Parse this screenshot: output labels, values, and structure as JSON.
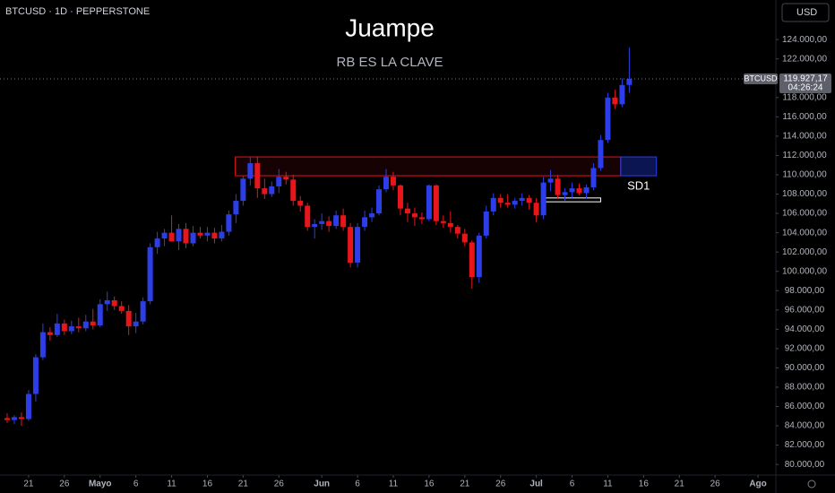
{
  "chart_data": {
    "type": "candlestick",
    "symbol": "BTCUSD · 1D · PEPPERSTONE",
    "currency": "USD",
    "title": "Juampe",
    "subtitle": "RB ES LA CLAVE",
    "up_color": "#2d3ee8",
    "down_color": "#e8151b",
    "x": [
      -3,
      -2,
      -1,
      0,
      1,
      2,
      3,
      4,
      5,
      6,
      7,
      8,
      9,
      10,
      11,
      12,
      13,
      14,
      15,
      16,
      17,
      18,
      19,
      20,
      21,
      22,
      23,
      24,
      25,
      26,
      27,
      28,
      29,
      30,
      31,
      32,
      33,
      34,
      35,
      36,
      37,
      38,
      39,
      40,
      41,
      42,
      43,
      44,
      45,
      46,
      47,
      48,
      49,
      50,
      51,
      52,
      53,
      54,
      55,
      56,
      57,
      58,
      59,
      60,
      61,
      62,
      63,
      64,
      65,
      66,
      67,
      68,
      69,
      70,
      71,
      72,
      73,
      74,
      75,
      76,
      77,
      78,
      79,
      80,
      81,
      82,
      83,
      84
    ],
    "open": [
      84800,
      84600,
      84900,
      84700,
      87300,
      91100,
      93700,
      93400,
      94600,
      93800,
      94300,
      94100,
      94800,
      94400,
      96600,
      97000,
      96400,
      95900,
      94300,
      94800,
      96900,
      102500,
      103400,
      104000,
      103100,
      104400,
      102900,
      104000,
      103700,
      104000,
      103400,
      104100,
      105900,
      107300,
      109600,
      111200,
      108600,
      108000,
      108800,
      109800,
      109500,
      107300,
      106800,
      104600,
      104900,
      105200,
      104700,
      105800,
      104600,
      100900,
      104600,
      105600,
      106000,
      108500,
      109800,
      108900,
      106500,
      106000,
      105600,
      105400,
      108900,
      105200,
      105000,
      104600,
      103900,
      103000,
      99400,
      103700,
      106200,
      107600,
      107100,
      106900,
      107300,
      107600,
      107100,
      105800,
      109200,
      109600,
      107900,
      108200,
      108600,
      108100,
      108700,
      110700,
      113600,
      118000,
      117300,
      119300
    ],
    "high": [
      85300,
      85100,
      85400,
      87700,
      91400,
      94600,
      94200,
      95600,
      95000,
      94900,
      95200,
      95500,
      96100,
      97100,
      97900,
      97400,
      96900,
      96500,
      95700,
      97300,
      102900,
      104100,
      104400,
      105800,
      104900,
      105000,
      104700,
      104600,
      104600,
      104500,
      104800,
      106300,
      108000,
      109900,
      111900,
      111900,
      109600,
      109300,
      110600,
      110300,
      110000,
      107800,
      107100,
      105400,
      106000,
      105700,
      106300,
      106500,
      105000,
      105000,
      106300,
      106600,
      108900,
      110600,
      110300,
      109000,
      107100,
      106600,
      106100,
      109000,
      109000,
      105800,
      106200,
      104800,
      104400,
      103200,
      104000,
      106800,
      108100,
      108000,
      108000,
      107600,
      108100,
      107900,
      107600,
      109800,
      110500,
      110000,
      108600,
      109200,
      109100,
      109000,
      111200,
      114100,
      118500,
      118800,
      120000,
      123200
    ],
    "low": [
      84300,
      84200,
      84000,
      84500,
      86500,
      90800,
      92800,
      93200,
      93400,
      93500,
      93700,
      93800,
      94000,
      94200,
      95900,
      96000,
      95600,
      93400,
      93600,
      94500,
      96600,
      101800,
      102600,
      103300,
      102200,
      102400,
      102600,
      103400,
      103100,
      102900,
      103100,
      103700,
      105000,
      106800,
      108900,
      107600,
      107500,
      107700,
      108100,
      109000,
      106800,
      106200,
      104200,
      103400,
      104300,
      104100,
      104400,
      104200,
      100400,
      100400,
      104200,
      105100,
      105800,
      108200,
      108400,
      105800,
      105100,
      104700,
      104900,
      105200,
      104800,
      104500,
      104000,
      103400,
      102600,
      98200,
      98800,
      103400,
      105800,
      106600,
      106600,
      106500,
      106800,
      106400,
      105100,
      105400,
      108300,
      107500,
      107300,
      107600,
      107900,
      107500,
      108400,
      110400,
      113300,
      116800,
      117000,
      118500
    ],
    "close": [
      84600,
      84900,
      84700,
      87300,
      91100,
      93700,
      93400,
      94600,
      93800,
      94300,
      94100,
      94800,
      94400,
      96600,
      97000,
      96400,
      95900,
      94300,
      94800,
      96900,
      102500,
      103400,
      104000,
      103100,
      104400,
      102900,
      104000,
      103700,
      104000,
      103400,
      104100,
      105900,
      107300,
      109600,
      111200,
      108600,
      108000,
      108800,
      109800,
      109500,
      107300,
      106800,
      104600,
      104900,
      105200,
      104700,
      105800,
      104600,
      100900,
      104600,
      105600,
      106000,
      108500,
      109800,
      108900,
      106500,
      106000,
      105600,
      105400,
      108900,
      105200,
      105000,
      104600,
      103900,
      103000,
      99400,
      103700,
      106200,
      107600,
      107100,
      106900,
      107300,
      107600,
      107100,
      105800,
      109200,
      109600,
      107900,
      108200,
      108600,
      108100,
      108700,
      110700,
      113600,
      118000,
      117300,
      119300,
      119927.17
    ],
    "xlim": [
      -4,
      104.5
    ],
    "xticks": [
      {
        "value": 0,
        "label": "21"
      },
      {
        "value": 5,
        "label": "26"
      },
      {
        "value": 10,
        "label": "Mayo"
      },
      {
        "value": 15,
        "label": "6"
      },
      {
        "value": 20,
        "label": "11"
      },
      {
        "value": 25,
        "label": "16"
      },
      {
        "value": 30,
        "label": "21"
      },
      {
        "value": 35,
        "label": "26"
      },
      {
        "value": 41,
        "label": "Jun"
      },
      {
        "value": 46,
        "label": "6"
      },
      {
        "value": 51,
        "label": "11"
      },
      {
        "value": 56,
        "label": "16"
      },
      {
        "value": 61,
        "label": "21"
      },
      {
        "value": 66,
        "label": "26"
      },
      {
        "value": 71,
        "label": "Jul"
      },
      {
        "value": 76,
        "label": "6"
      },
      {
        "value": 81,
        "label": "11"
      },
      {
        "value": 86,
        "label": "16"
      },
      {
        "value": 91,
        "label": "21"
      },
      {
        "value": 96,
        "label": "26"
      },
      {
        "value": 102,
        "label": "Ago"
      }
    ],
    "ylim": [
      78900,
      128100
    ],
    "yticks": [
      {
        "value": 80000,
        "label": "80.000,00"
      },
      {
        "value": 82000,
        "label": "82.000,00"
      },
      {
        "value": 84000,
        "label": "84.000,00"
      },
      {
        "value": 86000,
        "label": "86.000,00"
      },
      {
        "value": 88000,
        "label": "88.000,00"
      },
      {
        "value": 90000,
        "label": "90.000,00"
      },
      {
        "value": 92000,
        "label": "92.000,00"
      },
      {
        "value": 94000,
        "label": "94.000,00"
      },
      {
        "value": 96000,
        "label": "96.000,00"
      },
      {
        "value": 98000,
        "label": "98.000,00"
      },
      {
        "value": 100000,
        "label": "100.000,00"
      },
      {
        "value": 102000,
        "label": "102.000,00"
      },
      {
        "value": 104000,
        "label": "104.000,00"
      },
      {
        "value": 106000,
        "label": "106.000,00"
      },
      {
        "value": 108000,
        "label": "108.000,00"
      },
      {
        "value": 110000,
        "label": "110.000,00"
      },
      {
        "value": 112000,
        "label": "112.000,00"
      },
      {
        "value": 114000,
        "label": "114.000,00"
      },
      {
        "value": 116000,
        "label": "116.000,00"
      },
      {
        "value": 118000,
        "label": "118.000,00"
      },
      {
        "value": 120000,
        "label": "120.000,00"
      },
      {
        "value": 122000,
        "label": "122.000,00"
      },
      {
        "value": 124000,
        "label": "124.000,00"
      }
    ],
    "price_line": {
      "name": "BTCUSD",
      "value": 119927.17,
      "label": "119.927,17",
      "countdown": "04:26:24"
    },
    "zones": [
      {
        "xlim": [
          28.9,
          82.8
        ],
        "ylim": [
          109900,
          111850
        ],
        "stroke": "#e0141b",
        "fill": "#1c0304"
      },
      {
        "xlim": [
          82.8,
          87.8
        ],
        "ylim": [
          109900,
          111850
        ],
        "stroke": "#2d3ee8",
        "fill": "#0d1a66",
        "label": "SD1"
      },
      {
        "xlim": [
          72.2,
          80
        ],
        "ylim": [
          107200,
          107600
        ],
        "stroke": "#ffffff",
        "fill": "#000000"
      }
    ]
  }
}
